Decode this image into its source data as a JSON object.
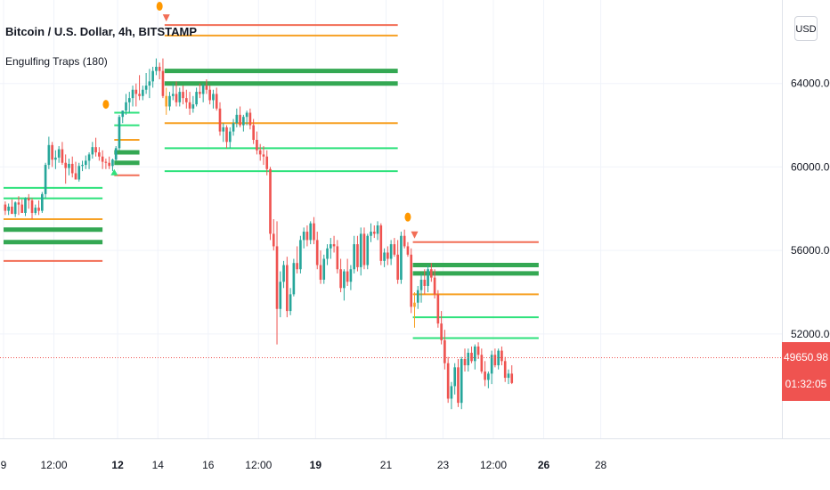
{
  "header": {
    "symbol_title": "Bitcoin / U.S. Dollar, 4h, BITSTAMP",
    "indicator_title": "Engulfing Traps (180)",
    "currency": "USD"
  },
  "price_scale": {
    "labels": [
      "64000.00",
      "60000.00",
      "56000.00",
      "52000.00"
    ],
    "last_price": "49650.98",
    "countdown": "01:32:05"
  },
  "time_axis": {
    "labels": [
      {
        "text": "9",
        "bold": false
      },
      {
        "text": "12:00",
        "bold": false
      },
      {
        "text": "12",
        "bold": true
      },
      {
        "text": "14",
        "bold": false
      },
      {
        "text": "16",
        "bold": false
      },
      {
        "text": "12:00",
        "bold": false
      },
      {
        "text": "19",
        "bold": true
      },
      {
        "text": "21",
        "bold": false
      },
      {
        "text": "23",
        "bold": false
      },
      {
        "text": "12:00",
        "bold": false
      },
      {
        "text": "26",
        "bold": true
      },
      {
        "text": "28",
        "bold": false
      }
    ]
  },
  "colors": {
    "up": "#26a69a",
    "down": "#ef5350",
    "engulf": "#f7a125",
    "level_green": "#2ee27c",
    "level_dark_green": "#34a853",
    "level_orange": "#f7a125",
    "level_red": "#f26e56",
    "dot": "#ff9800",
    "grid": "#f0f3fa"
  },
  "chart_data": {
    "type": "candlestick",
    "interval": "4h",
    "y_range": [
      47000,
      68000
    ],
    "last_price": 49650.98,
    "x_range": [
      0,
      232
    ],
    "candles": [
      [
        0,
        58200,
        58350,
        57700,
        57900
      ],
      [
        1,
        57900,
        58250,
        57700,
        58100
      ],
      [
        2,
        58100,
        58450,
        57800,
        57750
      ],
      [
        3,
        57750,
        58350,
        57600,
        58300
      ],
      [
        4,
        58300,
        58600,
        57700,
        58200
      ],
      [
        5,
        58200,
        58450,
        57800,
        57800
      ],
      [
        6,
        57800,
        58550,
        57650,
        58500
      ],
      [
        7,
        58500,
        58700,
        58000,
        58400
      ],
      [
        8,
        58400,
        58500,
        57500,
        57800
      ],
      [
        9,
        57800,
        58200,
        57700,
        58050
      ],
      [
        10,
        58050,
        58400,
        57700,
        57900
      ],
      [
        11,
        57900,
        58800,
        57800,
        58700
      ],
      [
        12,
        58700,
        60200,
        58500,
        60100
      ],
      [
        13,
        60100,
        61450,
        59900,
        61050
      ],
      [
        14,
        61050,
        61200,
        60000,
        60350
      ],
      [
        15,
        60350,
        60800,
        59900,
        60450
      ],
      [
        16,
        60450,
        61000,
        60200,
        60850
      ],
      [
        17,
        60850,
        61200,
        60100,
        60200
      ],
      [
        18,
        60200,
        60600,
        59200,
        59950
      ],
      [
        19,
        59950,
        60400,
        59600,
        60150
      ],
      [
        20,
        60150,
        60500,
        59500,
        59700
      ],
      [
        21,
        59700,
        60250,
        59400,
        59400
      ],
      [
        22,
        59400,
        60200,
        59300,
        60050
      ],
      [
        23,
        60050,
        60300,
        59800,
        60100
      ],
      [
        24,
        60100,
        60550,
        59900,
        60300
      ],
      [
        25,
        60300,
        60700,
        59900,
        60600
      ],
      [
        26,
        60600,
        61200,
        60400,
        60950
      ],
      [
        27,
        60950,
        61400,
        60500,
        60700
      ],
      [
        28,
        60700,
        60950,
        60300,
        60500
      ],
      [
        29,
        60500,
        60800,
        59900,
        60250
      ],
      [
        30,
        60250,
        60400,
        59900,
        60200
      ],
      [
        31,
        60200,
        60500,
        59900,
        60050
      ],
      [
        32,
        60050,
        60400,
        59800,
        60350
      ],
      [
        33,
        60350,
        61000,
        60300,
        60900
      ],
      [
        34,
        60900,
        62500,
        60800,
        62400
      ],
      [
        35,
        62400,
        62700,
        62100,
        62700
      ],
      [
        36,
        62700,
        63500,
        62500,
        63100
      ],
      [
        37,
        63100,
        63600,
        62600,
        63300
      ],
      [
        38,
        63300,
        63900,
        62900,
        63700
      ],
      [
        39,
        63700,
        64000,
        62900,
        63500
      ],
      [
        40,
        63500,
        64400,
        63200,
        63400
      ],
      [
        41,
        63400,
        63900,
        63200,
        63700
      ],
      [
        42,
        63700,
        64500,
        63500,
        63900
      ],
      [
        43,
        63900,
        64700,
        63300,
        64100
      ],
      [
        44,
        64100,
        64800,
        63800,
        64600
      ],
      [
        45,
        64600,
        65200,
        64400,
        64800
      ],
      [
        46,
        64800,
        65000,
        64200,
        64600
      ],
      [
        47,
        64600,
        65200,
        63300,
        63400
      ],
      [
        48,
        63400,
        63800,
        62500,
        62900
      ],
      [
        49,
        62900,
        63600,
        62700,
        63400
      ],
      [
        50,
        63400,
        64000,
        63200,
        63500
      ],
      [
        51,
        63500,
        64100,
        62900,
        63100
      ],
      [
        52,
        63100,
        63800,
        62900,
        63600
      ],
      [
        53,
        63600,
        63900,
        63000,
        63300
      ],
      [
        54,
        63300,
        63700,
        62800,
        63100
      ],
      [
        55,
        63100,
        63600,
        62500,
        62800
      ],
      [
        56,
        62800,
        63400,
        62600,
        63000
      ],
      [
        57,
        63000,
        63800,
        62900,
        63600
      ],
      [
        58,
        63600,
        64000,
        63300,
        63500
      ],
      [
        59,
        63500,
        64000,
        63100,
        63900
      ],
      [
        60,
        63900,
        64200,
        63500,
        63700
      ],
      [
        61,
        63700,
        63900,
        63000,
        63200
      ],
      [
        62,
        63200,
        63700,
        62800,
        63500
      ],
      [
        63,
        63500,
        63800,
        62700,
        62800
      ],
      [
        64,
        62800,
        63100,
        61500,
        61700
      ],
      [
        65,
        61700,
        62100,
        61200,
        61900
      ],
      [
        66,
        61900,
        62000,
        60900,
        61200
      ],
      [
        67,
        61200,
        61900,
        60900,
        61700
      ],
      [
        68,
        61700,
        62300,
        61500,
        62100
      ],
      [
        69,
        62100,
        62800,
        61900,
        62500
      ],
      [
        70,
        62500,
        62900,
        61900,
        62000
      ],
      [
        71,
        62000,
        62500,
        61700,
        62400
      ],
      [
        72,
        62400,
        62700,
        62000,
        62600
      ],
      [
        73,
        62600,
        62800,
        61800,
        62000
      ],
      [
        74,
        62000,
        62300,
        61100,
        61300
      ],
      [
        75,
        61300,
        61700,
        60600,
        60800
      ],
      [
        76,
        60800,
        61100,
        60300,
        60600
      ],
      [
        77,
        60600,
        61000,
        60100,
        60500
      ],
      [
        78,
        60500,
        60800,
        59600,
        59900
      ],
      [
        79,
        59900,
        60000,
        56500,
        56800
      ],
      [
        80,
        56800,
        57500,
        56000,
        56200
      ],
      [
        81,
        56200,
        57400,
        51500,
        53200
      ],
      [
        82,
        53200,
        55000,
        52800,
        54500
      ],
      [
        83,
        54500,
        55500,
        54200,
        55300
      ],
      [
        84,
        55300,
        55700,
        52800,
        53100
      ],
      [
        85,
        53100,
        54200,
        52900,
        53900
      ],
      [
        86,
        53900,
        55600,
        53800,
        55400
      ],
      [
        87,
        55400,
        56200,
        54900,
        55100
      ],
      [
        88,
        55100,
        56700,
        54900,
        56500
      ],
      [
        89,
        56500,
        57100,
        56100,
        56900
      ],
      [
        90,
        56900,
        57200,
        56200,
        56500
      ],
      [
        91,
        56500,
        57400,
        56300,
        57300
      ],
      [
        92,
        57300,
        57600,
        56300,
        56500
      ],
      [
        93,
        56500,
        56900,
        55100,
        55300
      ],
      [
        94,
        55300,
        56000,
        54400,
        54600
      ],
      [
        95,
        54600,
        55800,
        54400,
        55600
      ],
      [
        96,
        55600,
        56300,
        55300,
        56100
      ],
      [
        97,
        56100,
        56600,
        55600,
        56300
      ],
      [
        98,
        56300,
        56700,
        55900,
        56200
      ],
      [
        99,
        56200,
        56500,
        54900,
        55100
      ],
      [
        100,
        55100,
        55600,
        54000,
        54200
      ],
      [
        101,
        54200,
        55100,
        53600,
        55000
      ],
      [
        102,
        55000,
        55600,
        54300,
        54500
      ],
      [
        103,
        54500,
        55300,
        54100,
        55100
      ],
      [
        104,
        55100,
        56700,
        54900,
        56300
      ],
      [
        105,
        56300,
        56700,
        55000,
        55200
      ],
      [
        106,
        55200,
        57100,
        54800,
        56800
      ],
      [
        107,
        56800,
        57100,
        55100,
        55300
      ],
      [
        108,
        55300,
        56800,
        55100,
        56700
      ],
      [
        109,
        56700,
        57300,
        56400,
        56900
      ],
      [
        110,
        56900,
        57200,
        56600,
        56800
      ],
      [
        111,
        56800,
        57400,
        56500,
        57200
      ],
      [
        112,
        57200,
        57300,
        55300,
        55500
      ],
      [
        113,
        55500,
        56100,
        55200,
        55900
      ],
      [
        114,
        55900,
        56200,
        55300,
        55600
      ],
      [
        115,
        55600,
        56500,
        55300,
        56300
      ],
      [
        116,
        56300,
        56600,
        55700,
        55800
      ],
      [
        117,
        55800,
        56500,
        54400,
        54600
      ],
      [
        118,
        54600,
        56900,
        54400,
        56700
      ],
      [
        119,
        56700,
        57000,
        56100,
        56200
      ],
      [
        120,
        56200,
        56400,
        55700,
        55800
      ],
      [
        121,
        55800,
        56100,
        53000,
        53300
      ],
      [
        122,
        53300,
        54000,
        52300,
        53500
      ],
      [
        123,
        53500,
        54300,
        53200,
        54100
      ],
      [
        124,
        54100,
        54900,
        53500,
        54600
      ],
      [
        125,
        54600,
        55100,
        53900,
        54300
      ],
      [
        126,
        54300,
        55300,
        54000,
        55100
      ],
      [
        127,
        55100,
        55400,
        54500,
        54700
      ],
      [
        128,
        54700,
        55100,
        53700,
        53900
      ],
      [
        129,
        53900,
        54100,
        52300,
        52500
      ],
      [
        130,
        52500,
        53100,
        51500,
        51700
      ],
      [
        131,
        51700,
        52200,
        50300,
        50600
      ],
      [
        132,
        50600,
        50900,
        48700,
        48900
      ],
      [
        133,
        48900,
        49700,
        48400,
        49500
      ],
      [
        134,
        49500,
        50600,
        49100,
        50400
      ],
      [
        135,
        50400,
        50800,
        48500,
        48700
      ],
      [
        136,
        48700,
        50900,
        48400,
        50800
      ],
      [
        137,
        50800,
        51300,
        50200,
        50500
      ],
      [
        138,
        50500,
        51300,
        50200,
        51100
      ],
      [
        139,
        51100,
        51400,
        50600,
        50700
      ],
      [
        140,
        50700,
        51500,
        50300,
        51400
      ],
      [
        141,
        51400,
        51600,
        50800,
        51000
      ],
      [
        142,
        51000,
        51300,
        50100,
        50200
      ],
      [
        143,
        50200,
        50700,
        49500,
        49800
      ],
      [
        144,
        49800,
        50200,
        49400,
        50100
      ],
      [
        145,
        50100,
        51200,
        49600,
        51000
      ],
      [
        146,
        51000,
        51300,
        50400,
        50500
      ],
      [
        147,
        50500,
        51300,
        50300,
        51200
      ],
      [
        148,
        51200,
        51400,
        50500,
        50700
      ],
      [
        149,
        50700,
        50900,
        49700,
        49900
      ],
      [
        150,
        49900,
        50300,
        49600,
        50100
      ],
      [
        151,
        50100,
        50500,
        49600,
        49650.98
      ]
    ],
    "traps": [
      {
        "x": 48,
        "y": 67100,
        "dot_y": 67700
      },
      {
        "x": 122,
        "y": 56700,
        "dot_y": 57600
      }
    ],
    "dots": [
      {
        "x": 30,
        "y": 63000
      }
    ],
    "levels": [
      {
        "x1": 0,
        "x2": 29,
        "y": 59000,
        "color": "level_green",
        "width": 2
      },
      {
        "x1": 0,
        "x2": 29,
        "y": 58500,
        "color": "level_green",
        "width": 2
      },
      {
        "x1": 0,
        "x2": 29,
        "y": 57500,
        "color": "level_orange",
        "width": 2
      },
      {
        "x1": 0,
        "x2": 29,
        "y": 57000,
        "color": "level_dark_green",
        "width": 5
      },
      {
        "x1": 0,
        "x2": 29,
        "y": 56400,
        "color": "level_dark_green",
        "width": 5
      },
      {
        "x1": 0,
        "x2": 29,
        "y": 55500,
        "color": "level_red",
        "width": 2
      },
      {
        "x1": 33,
        "x2": 40,
        "y": 62600,
        "color": "level_green",
        "width": 2
      },
      {
        "x1": 33,
        "x2": 40,
        "y": 62000,
        "color": "level_green",
        "width": 2
      },
      {
        "x1": 33,
        "x2": 40,
        "y": 61300,
        "color": "level_orange",
        "width": 2
      },
      {
        "x1": 33,
        "x2": 40,
        "y": 60700,
        "color": "level_dark_green",
        "width": 5
      },
      {
        "x1": 33,
        "x2": 40,
        "y": 60200,
        "color": "level_dark_green",
        "width": 5
      },
      {
        "x1": 33,
        "x2": 40,
        "y": 59600,
        "color": "level_red",
        "width": 2
      },
      {
        "x1": 48,
        "x2": 117,
        "y": 66800,
        "color": "level_red",
        "width": 2
      },
      {
        "x1": 48,
        "x2": 117,
        "y": 66300,
        "color": "level_orange",
        "width": 2
      },
      {
        "x1": 48,
        "x2": 117,
        "y": 64600,
        "color": "level_dark_green",
        "width": 5
      },
      {
        "x1": 48,
        "x2": 117,
        "y": 64000,
        "color": "level_dark_green",
        "width": 5
      },
      {
        "x1": 48,
        "x2": 117,
        "y": 62100,
        "color": "level_orange",
        "width": 2
      },
      {
        "x1": 48,
        "x2": 117,
        "y": 60900,
        "color": "level_green",
        "width": 2
      },
      {
        "x1": 48,
        "x2": 117,
        "y": 59800,
        "color": "level_green",
        "width": 2
      },
      {
        "x1": 122,
        "x2": 159,
        "y": 56400,
        "color": "level_red",
        "width": 2
      },
      {
        "x1": 122,
        "x2": 159,
        "y": 55300,
        "color": "level_dark_green",
        "width": 5
      },
      {
        "x1": 122,
        "x2": 159,
        "y": 54900,
        "color": "level_dark_green",
        "width": 5
      },
      {
        "x1": 122,
        "x2": 159,
        "y": 53900,
        "color": "level_orange",
        "width": 2
      },
      {
        "x1": 122,
        "x2": 159,
        "y": 52800,
        "color": "level_green",
        "width": 2
      },
      {
        "x1": 122,
        "x2": 159,
        "y": 51800,
        "color": "level_green",
        "width": 2
      }
    ]
  }
}
